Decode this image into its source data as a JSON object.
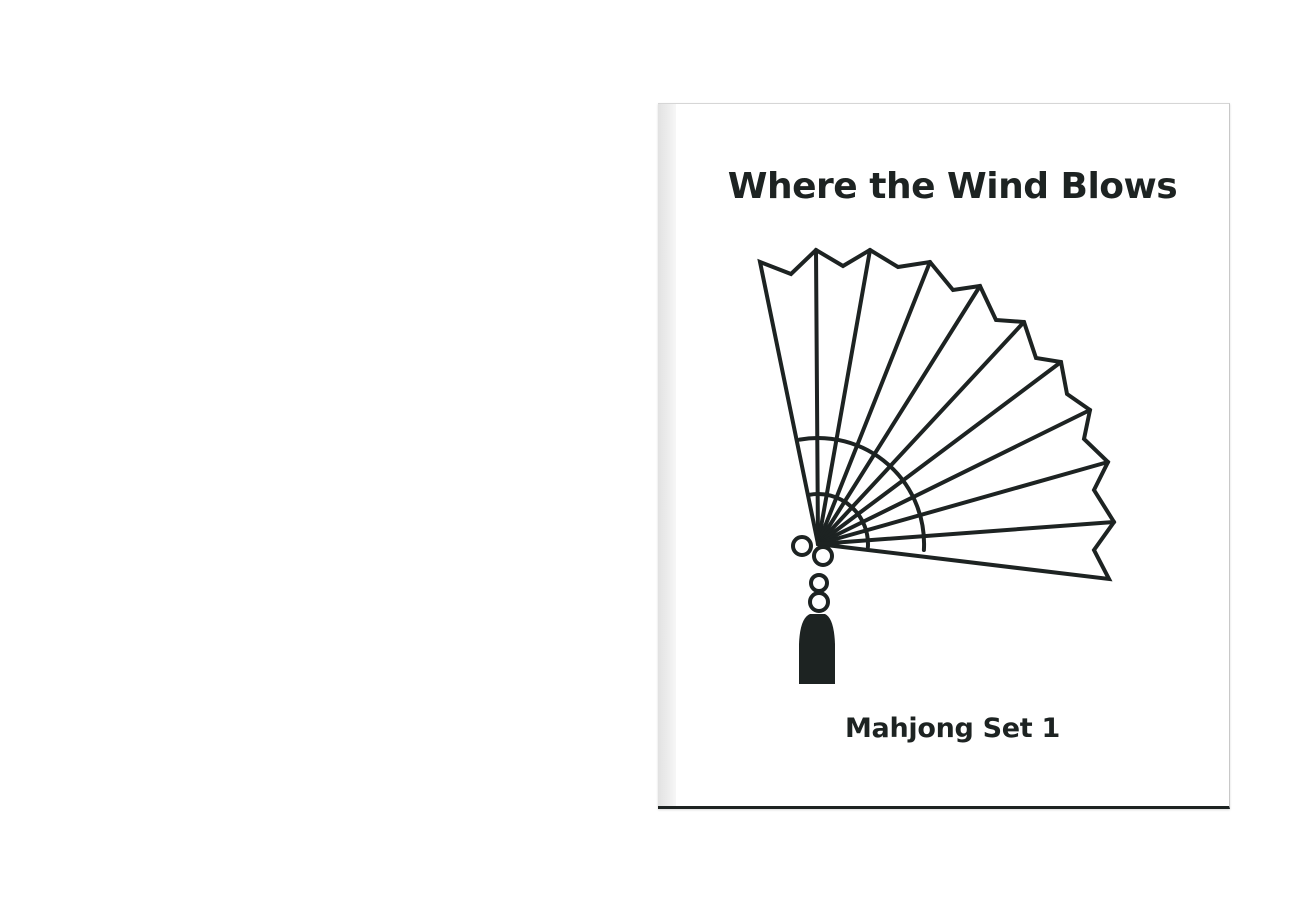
{
  "cover": {
    "title": "Where the Wind Blows",
    "subtitle": "Mahjong Set 1",
    "illustration_icon": "folding-fan-icon",
    "ink_color": "#1d2322",
    "paper_color": "#ffffff"
  }
}
